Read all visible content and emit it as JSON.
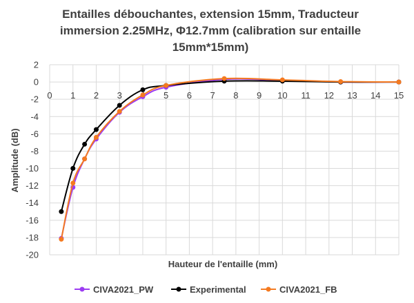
{
  "chart_data": {
    "type": "line",
    "title_lines": [
      "Entailles débouchantes, extension 15mm, Traducteur",
      "immersion 2.25MHz, Φ12.7mm (calibration sur entaille",
      "15mm*15mm)"
    ],
    "xlabel": "Hauteur de l'entaille (mm)",
    "ylabel": "Amplitude (dB)",
    "xlim": [
      0,
      15
    ],
    "ylim": [
      -20,
      2
    ],
    "xticks": [
      0,
      1,
      2,
      3,
      4,
      5,
      6,
      7,
      8,
      9,
      10,
      11,
      12,
      13,
      14,
      15
    ],
    "yticks": [
      2,
      0,
      -2,
      -4,
      -6,
      -8,
      -10,
      -12,
      -14,
      -16,
      -18,
      -20
    ],
    "grid": true,
    "legend_position": "bottom",
    "series": [
      {
        "name": "CIVA2021_PW",
        "color": "#9c3bf2",
        "x": [
          0.5,
          1,
          1.5,
          2,
          3,
          4,
          5,
          7.5,
          10,
          12.5,
          15
        ],
        "y": [
          -18.1,
          -12.2,
          -8.9,
          -6.6,
          -3.5,
          -1.7,
          -0.6,
          0.3,
          0.2,
          0.0,
          0.0
        ]
      },
      {
        "name": "Experimental",
        "color": "#000000",
        "x": [
          0.5,
          1,
          1.5,
          2,
          3,
          4,
          5,
          7.5,
          10,
          12.5,
          15
        ],
        "y": [
          -15.0,
          -10.0,
          -7.2,
          -5.5,
          -2.7,
          -0.9,
          -0.4,
          0.1,
          0.1,
          0.0,
          0.0
        ]
      },
      {
        "name": "CIVA2021_FB",
        "color": "#f47a20",
        "x": [
          0.5,
          1,
          1.5,
          2,
          3,
          4,
          5,
          7.5,
          10,
          12.5,
          15
        ],
        "y": [
          -18.2,
          -11.7,
          -8.9,
          -6.4,
          -3.4,
          -1.5,
          -0.4,
          0.4,
          0.25,
          0.05,
          0.0
        ]
      }
    ]
  }
}
